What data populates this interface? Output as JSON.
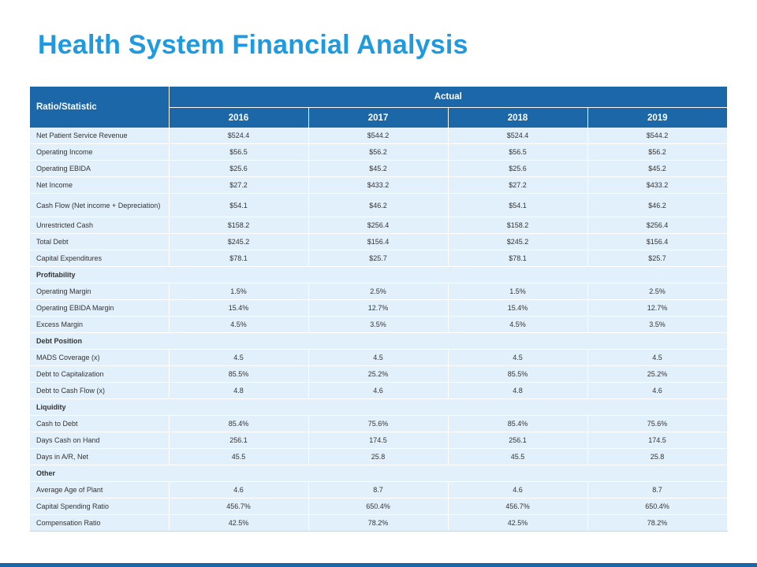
{
  "title": "Health System Financial Analysis",
  "table": {
    "label_header": "Ratio/Statistic",
    "group_header": "Actual",
    "years": [
      "2016",
      "2017",
      "2018",
      "2019"
    ],
    "rows": [
      {
        "type": "data",
        "label": "Net Patient Service Revenue",
        "values": [
          "$524.4",
          "$544.2",
          "$524.4",
          "$544.2"
        ]
      },
      {
        "type": "data",
        "label": "Operating  Income",
        "values": [
          "$56.5",
          "$56.2",
          "$56.5",
          "$56.2"
        ]
      },
      {
        "type": "data",
        "label": "Operating  EBIDA",
        "values": [
          "$25.6",
          "$45.2",
          "$25.6",
          "$45.2"
        ]
      },
      {
        "type": "data",
        "label": "Net Income",
        "values": [
          "$27.2",
          "$433.2",
          "$27.2",
          "$433.2"
        ]
      },
      {
        "type": "data",
        "label": "Cash Flow (Net income + Depreciation)",
        "values": [
          "$54.1",
          "$46.2",
          "$54.1",
          "$46.2"
        ],
        "tall": true
      },
      {
        "type": "data",
        "label": "Unrestricted Cash",
        "values": [
          "$158.2",
          "$256.4",
          "$158.2",
          "$256.4"
        ]
      },
      {
        "type": "data",
        "label": "Total Debt",
        "values": [
          "$245.2",
          "$156.4",
          "$245.2",
          "$156.4"
        ]
      },
      {
        "type": "data",
        "label": "Capital Expenditures",
        "values": [
          "$78.1",
          "$25.7",
          "$78.1",
          "$25.7"
        ]
      },
      {
        "type": "section",
        "label": "Profitability"
      },
      {
        "type": "data",
        "label": "Operating  Margin",
        "values": [
          "1.5%",
          "2.5%",
          "1.5%",
          "2.5%"
        ]
      },
      {
        "type": "data",
        "label": "Operating  EBIDA Margin",
        "values": [
          "15.4%",
          "12.7%",
          "15.4%",
          "12.7%"
        ]
      },
      {
        "type": "data",
        "label": "Excess Margin",
        "values": [
          "4.5%",
          "3.5%",
          "4.5%",
          "3.5%"
        ]
      },
      {
        "type": "section",
        "label": "Debt Position"
      },
      {
        "type": "data",
        "label": "MADS Coverage (x)",
        "values": [
          "4.5",
          "4.5",
          "4.5",
          "4.5"
        ]
      },
      {
        "type": "data",
        "label": "Debt to Capitalization",
        "values": [
          "85.5%",
          "25.2%",
          "85.5%",
          "25.2%"
        ]
      },
      {
        "type": "data",
        "label": "Debt to Cash Flow (x)",
        "values": [
          "4.8",
          "4.6",
          "4.8",
          "4.6"
        ]
      },
      {
        "type": "section",
        "label": "Liquidity"
      },
      {
        "type": "data",
        "label": "Cash to Debt",
        "values": [
          "85.4%",
          "75.6%",
          "85.4%",
          "75.6%"
        ]
      },
      {
        "type": "data",
        "label": "Days Cash on Hand",
        "values": [
          "256.1",
          "174.5",
          "256.1",
          "174.5"
        ]
      },
      {
        "type": "data",
        "label": "Days in A/R, Net",
        "values": [
          "45.5",
          "25.8",
          "45.5",
          "25.8"
        ]
      },
      {
        "type": "section",
        "label": "Other"
      },
      {
        "type": "data",
        "label": "Average Age of Plant",
        "values": [
          "4.6",
          "8.7",
          "4.6",
          "8.7"
        ]
      },
      {
        "type": "data",
        "label": "Capital Spending  Ratio",
        "values": [
          "456.7%",
          "650.4%",
          "456.7%",
          "650.4%"
        ]
      },
      {
        "type": "data",
        "label": "Compensation Ratio",
        "values": [
          "42.5%",
          "78.2%",
          "42.5%",
          "78.2%"
        ]
      }
    ]
  },
  "colors": {
    "title": "#1e9ae0",
    "header_bg": "#1c67a8",
    "cell_bg": "#e2f0fb",
    "bottom_bar": "#1c67a8"
  }
}
